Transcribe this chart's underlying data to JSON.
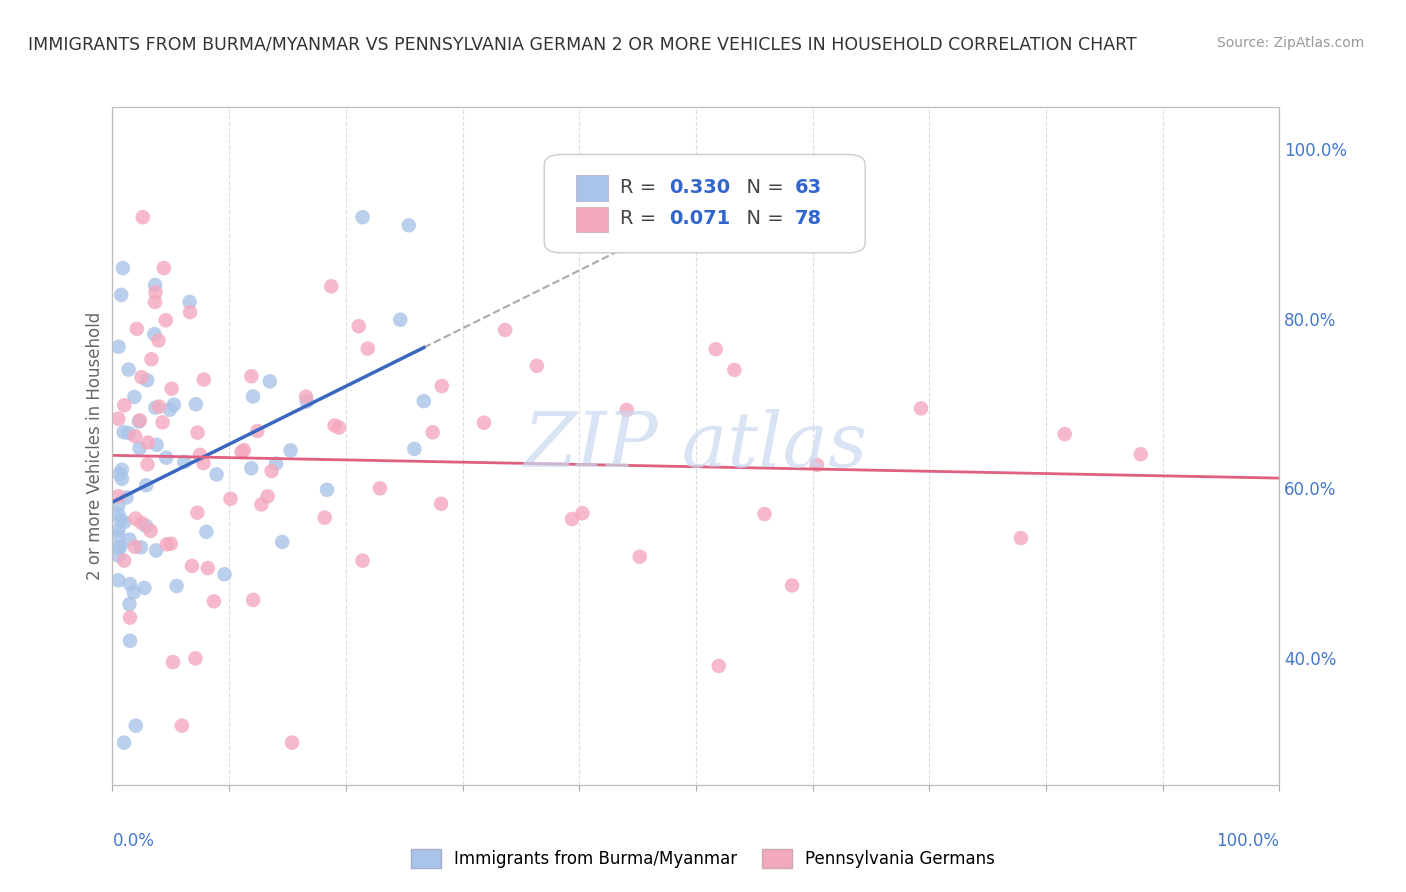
{
  "title": "IMMIGRANTS FROM BURMA/MYANMAR VS PENNSYLVANIA GERMAN 2 OR MORE VEHICLES IN HOUSEHOLD CORRELATION CHART",
  "source": "Source: ZipAtlas.com",
  "legend_label1": "Immigrants from Burma/Myanmar",
  "legend_label2": "Pennsylvania Germans",
  "R1": 0.33,
  "N1": 63,
  "R2": 0.071,
  "N2": 78,
  "color1": "#a8c4e8",
  "color2": "#f4a8be",
  "trendline1_color": "#3a68c0",
  "trendline2_color": "#e06080",
  "ylabel": "2 or more Vehicles in Household",
  "right_yticks": [
    1.0,
    0.8,
    0.6,
    0.4
  ],
  "right_yticklabels": [
    "100.0%",
    "80.0%",
    "60.0%",
    "40.0%"
  ],
  "xlim": [
    0.0,
    1.0
  ],
  "ylim": [
    0.25,
    1.05
  ],
  "background_color": "#ffffff",
  "grid_color": "#dddddd",
  "watermark_text": "ZIP atlas",
  "watermark_color": "#c8d8f0"
}
